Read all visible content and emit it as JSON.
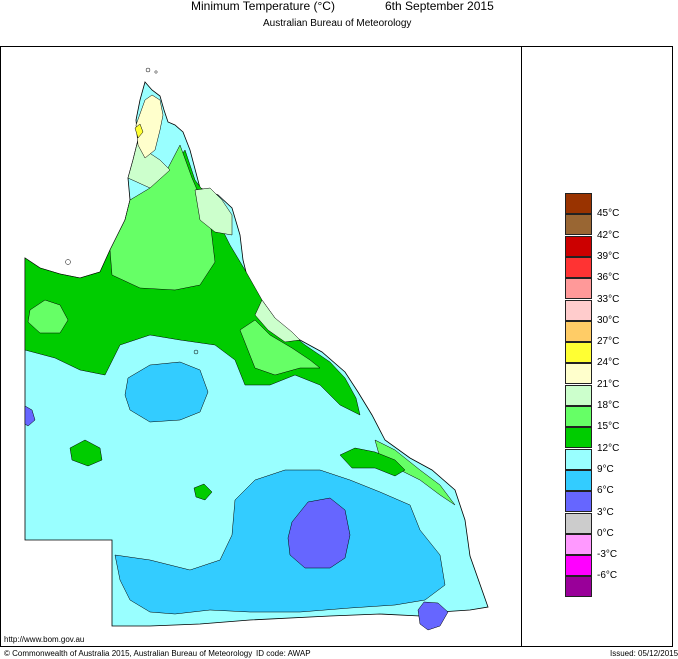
{
  "title": {
    "main": "Minimum Temperature (°C)",
    "date": "6th September 2015",
    "subtitle": "Australian Bureau of Meteorology"
  },
  "legend": {
    "items": [
      {
        "label": "45°C",
        "color": "#993300"
      },
      {
        "label": "42°C",
        "color": "#996633"
      },
      {
        "label": "39°C",
        "color": "#cc0000"
      },
      {
        "label": "36°C",
        "color": "#ff3333"
      },
      {
        "label": "33°C",
        "color": "#ff9999"
      },
      {
        "label": "30°C",
        "color": "#ffcccc"
      },
      {
        "label": "27°C",
        "color": "#ffcc66"
      },
      {
        "label": "24°C",
        "color": "#ffff33"
      },
      {
        "label": "21°C",
        "color": "#ffffcc"
      },
      {
        "label": "18°C",
        "color": "#ccffcc"
      },
      {
        "label": "15°C",
        "color": "#66ff66"
      },
      {
        "label": "12°C",
        "color": "#00cc00"
      },
      {
        "label": "9°C",
        "color": "#99ffff"
      },
      {
        "label": "6°C",
        "color": "#33ccff"
      },
      {
        "label": "3°C",
        "color": "#6666ff"
      },
      {
        "label": "0°C",
        "color": "#cccccc"
      },
      {
        "label": "-3°C",
        "color": "#ff99ff"
      },
      {
        "label": "-6°C",
        "color": "#ff00ff"
      },
      {
        "label": "",
        "color": "#990099"
      }
    ]
  },
  "footer": {
    "url": "http://www.bom.gov.au",
    "copyright": "© Commonwealth of Australia 2015, Australian Bureau of Meteorology",
    "id_code": "ID code: AWAP",
    "issued": "Issued: 05/12/2015"
  }
}
